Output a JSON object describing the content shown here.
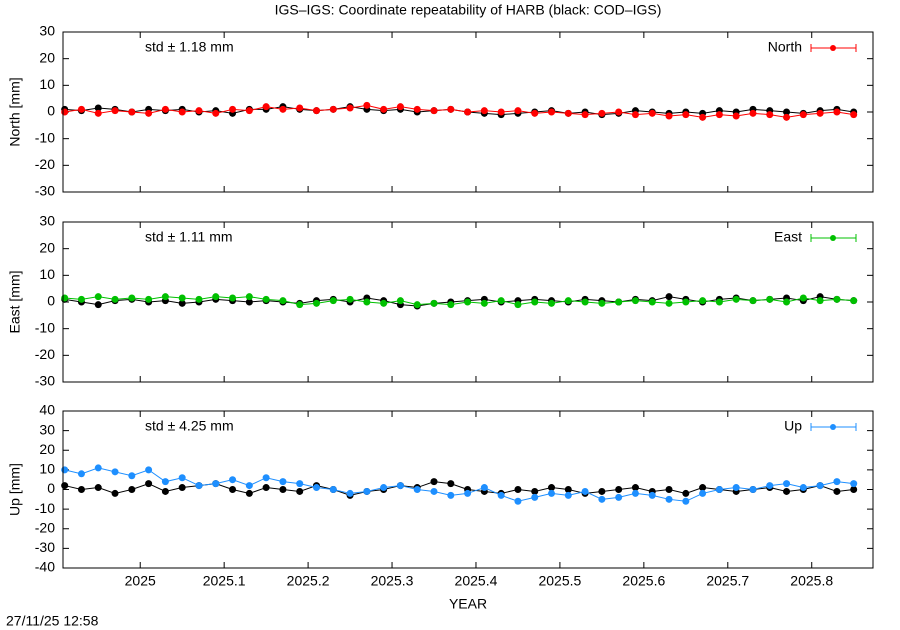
{
  "title": "IGS–IGS: Coordinate repeatability of HARB (black: COD–IGS)",
  "timestamp": "27/11/25 12:58",
  "chart_data": [
    {
      "type": "scatter",
      "ylabel": "North [mm]",
      "annotation": "std ± 1.18 mm",
      "xlim": [
        2024.908,
        2025.873
      ],
      "xticks": [
        2025,
        2025.1,
        2025.2,
        2025.3,
        2025.4,
        2025.5,
        2025.6,
        2025.7,
        2025.8
      ],
      "ylim": [
        -30,
        30
      ],
      "yticks": [
        -30,
        -20,
        -10,
        0,
        10,
        20,
        30
      ],
      "x": [
        2024.91,
        2024.93,
        2024.95,
        2024.97,
        2024.99,
        2025.01,
        2025.03,
        2025.05,
        2025.07,
        2025.09,
        2025.11,
        2025.13,
        2025.15,
        2025.17,
        2025.19,
        2025.21,
        2025.23,
        2025.25,
        2025.27,
        2025.29,
        2025.31,
        2025.33,
        2025.35,
        2025.37,
        2025.39,
        2025.41,
        2025.43,
        2025.45,
        2025.47,
        2025.49,
        2025.51,
        2025.53,
        2025.55,
        2025.57,
        2025.59,
        2025.61,
        2025.63,
        2025.65,
        2025.67,
        2025.69,
        2025.71,
        2025.73,
        2025.75,
        2025.77,
        2025.79,
        2025.81,
        2025.83,
        2025.85
      ],
      "series": [
        {
          "color": "#000000",
          "values": [
            1,
            0.5,
            1.5,
            1,
            0,
            1,
            0.5,
            1,
            0,
            0.5,
            -0.5,
            1,
            1,
            2,
            1,
            0.5,
            1,
            2,
            1,
            0.5,
            1,
            0,
            0.5,
            1,
            0,
            -0.5,
            -1,
            -0.5,
            0,
            0.5,
            -0.5,
            0,
            -1,
            -0.5,
            0.5,
            0,
            -0.5,
            0,
            -0.5,
            0.5,
            0,
            1,
            0.5,
            0,
            -0.5,
            0.5,
            1,
            0
          ]
        },
        {
          "name": "North",
          "color": "#ff0000",
          "values": [
            0,
            1,
            -0.5,
            0.5,
            0,
            -0.5,
            1,
            0,
            0.5,
            -0.5,
            1,
            0.5,
            2,
            1,
            1.5,
            0.5,
            1,
            1.5,
            2.5,
            1,
            2,
            1,
            0.5,
            1,
            0,
            0.5,
            0,
            0.5,
            -0.5,
            0,
            -0.5,
            -1,
            -0.5,
            0,
            -1,
            -0.5,
            -1.5,
            -1,
            -2,
            -1,
            -1.5,
            -0.5,
            -1,
            -2,
            -1,
            -0.5,
            0,
            -1
          ]
        }
      ]
    },
    {
      "type": "scatter",
      "ylabel": "East [mm]",
      "annotation": "std ± 1.11 mm",
      "xlim": [
        2024.908,
        2025.873
      ],
      "xticks": [
        2025,
        2025.1,
        2025.2,
        2025.3,
        2025.4,
        2025.5,
        2025.6,
        2025.7,
        2025.8
      ],
      "ylim": [
        -30,
        30
      ],
      "yticks": [
        -30,
        -20,
        -10,
        0,
        10,
        20,
        30
      ],
      "x": [
        2024.91,
        2024.93,
        2024.95,
        2024.97,
        2024.99,
        2025.01,
        2025.03,
        2025.05,
        2025.07,
        2025.09,
        2025.11,
        2025.13,
        2025.15,
        2025.17,
        2025.19,
        2025.21,
        2025.23,
        2025.25,
        2025.27,
        2025.29,
        2025.31,
        2025.33,
        2025.35,
        2025.37,
        2025.39,
        2025.41,
        2025.43,
        2025.45,
        2025.47,
        2025.49,
        2025.51,
        2025.53,
        2025.55,
        2025.57,
        2025.59,
        2025.61,
        2025.63,
        2025.65,
        2025.67,
        2025.69,
        2025.71,
        2025.73,
        2025.75,
        2025.77,
        2025.79,
        2025.81,
        2025.83,
        2025.85
      ],
      "series": [
        {
          "color": "#000000",
          "values": [
            1,
            0,
            -1,
            0.5,
            1,
            0,
            0.5,
            -0.5,
            0,
            1,
            0.5,
            0,
            0.5,
            0,
            -0.5,
            0.5,
            1,
            0,
            1.5,
            0.5,
            -1,
            -1.5,
            -0.5,
            0,
            0.5,
            1,
            0,
            0.5,
            1,
            0.5,
            0,
            1,
            0.5,
            0,
            1,
            0.5,
            2,
            1,
            0,
            1,
            1.5,
            0.5,
            1,
            1.5,
            0.5,
            2,
            1,
            0.5
          ]
        },
        {
          "name": "East",
          "color": "#00c000",
          "values": [
            1.5,
            1,
            2,
            1,
            1.5,
            1,
            2,
            1.5,
            1,
            2,
            1.5,
            2,
            1,
            0.5,
            -1,
            -0.5,
            0.5,
            1,
            0,
            -0.5,
            0.5,
            -1,
            -0.5,
            -1,
            0,
            -0.5,
            0.5,
            -1,
            0,
            -0.5,
            0.5,
            0,
            -0.5,
            0,
            0.5,
            0,
            -0.5,
            0,
            0.5,
            0,
            1,
            0.5,
            1,
            0,
            1.5,
            0.5,
            1,
            0.5
          ]
        }
      ]
    },
    {
      "type": "scatter",
      "ylabel": "Up [mm]",
      "annotation": "std ± 4.25 mm",
      "xlabel": "YEAR",
      "xlim": [
        2024.908,
        2025.873
      ],
      "xticks": [
        2025,
        2025.1,
        2025.2,
        2025.3,
        2025.4,
        2025.5,
        2025.6,
        2025.7,
        2025.8
      ],
      "ylim": [
        -40,
        40
      ],
      "yticks": [
        -40,
        -30,
        -20,
        -10,
        0,
        10,
        20,
        30,
        40
      ],
      "x": [
        2024.91,
        2024.93,
        2024.95,
        2024.97,
        2024.99,
        2025.01,
        2025.03,
        2025.05,
        2025.07,
        2025.09,
        2025.11,
        2025.13,
        2025.15,
        2025.17,
        2025.19,
        2025.21,
        2025.23,
        2025.25,
        2025.27,
        2025.29,
        2025.31,
        2025.33,
        2025.35,
        2025.37,
        2025.39,
        2025.41,
        2025.43,
        2025.45,
        2025.47,
        2025.49,
        2025.51,
        2025.53,
        2025.55,
        2025.57,
        2025.59,
        2025.61,
        2025.63,
        2025.65,
        2025.67,
        2025.69,
        2025.71,
        2025.73,
        2025.75,
        2025.77,
        2025.79,
        2025.81,
        2025.83,
        2025.85
      ],
      "series": [
        {
          "color": "#000000",
          "values": [
            2,
            0,
            1,
            -2,
            0,
            3,
            -1,
            1,
            2,
            3,
            0,
            -2,
            1,
            0,
            -1,
            2,
            0,
            -3,
            -1,
            0,
            2,
            1,
            4,
            3,
            0,
            -1,
            -2,
            0,
            -1,
            1,
            0,
            -2,
            -1,
            0,
            1,
            -1,
            0,
            -2,
            1,
            0,
            -1,
            0,
            1,
            -1,
            0,
            2,
            -1,
            0
          ]
        },
        {
          "name": "Up",
          "color": "#1e8fff",
          "values": [
            10,
            8,
            11,
            9,
            7,
            10,
            4,
            6,
            2,
            3,
            5,
            2,
            6,
            4,
            3,
            1,
            0,
            -2,
            -1,
            1,
            2,
            0,
            -1,
            -3,
            -2,
            1,
            -3,
            -6,
            -4,
            -2,
            -3,
            -1,
            -5,
            -4,
            -2,
            -3,
            -5,
            -6,
            -2,
            0,
            1,
            0,
            2,
            3,
            1,
            2,
            4,
            3
          ]
        }
      ]
    }
  ]
}
